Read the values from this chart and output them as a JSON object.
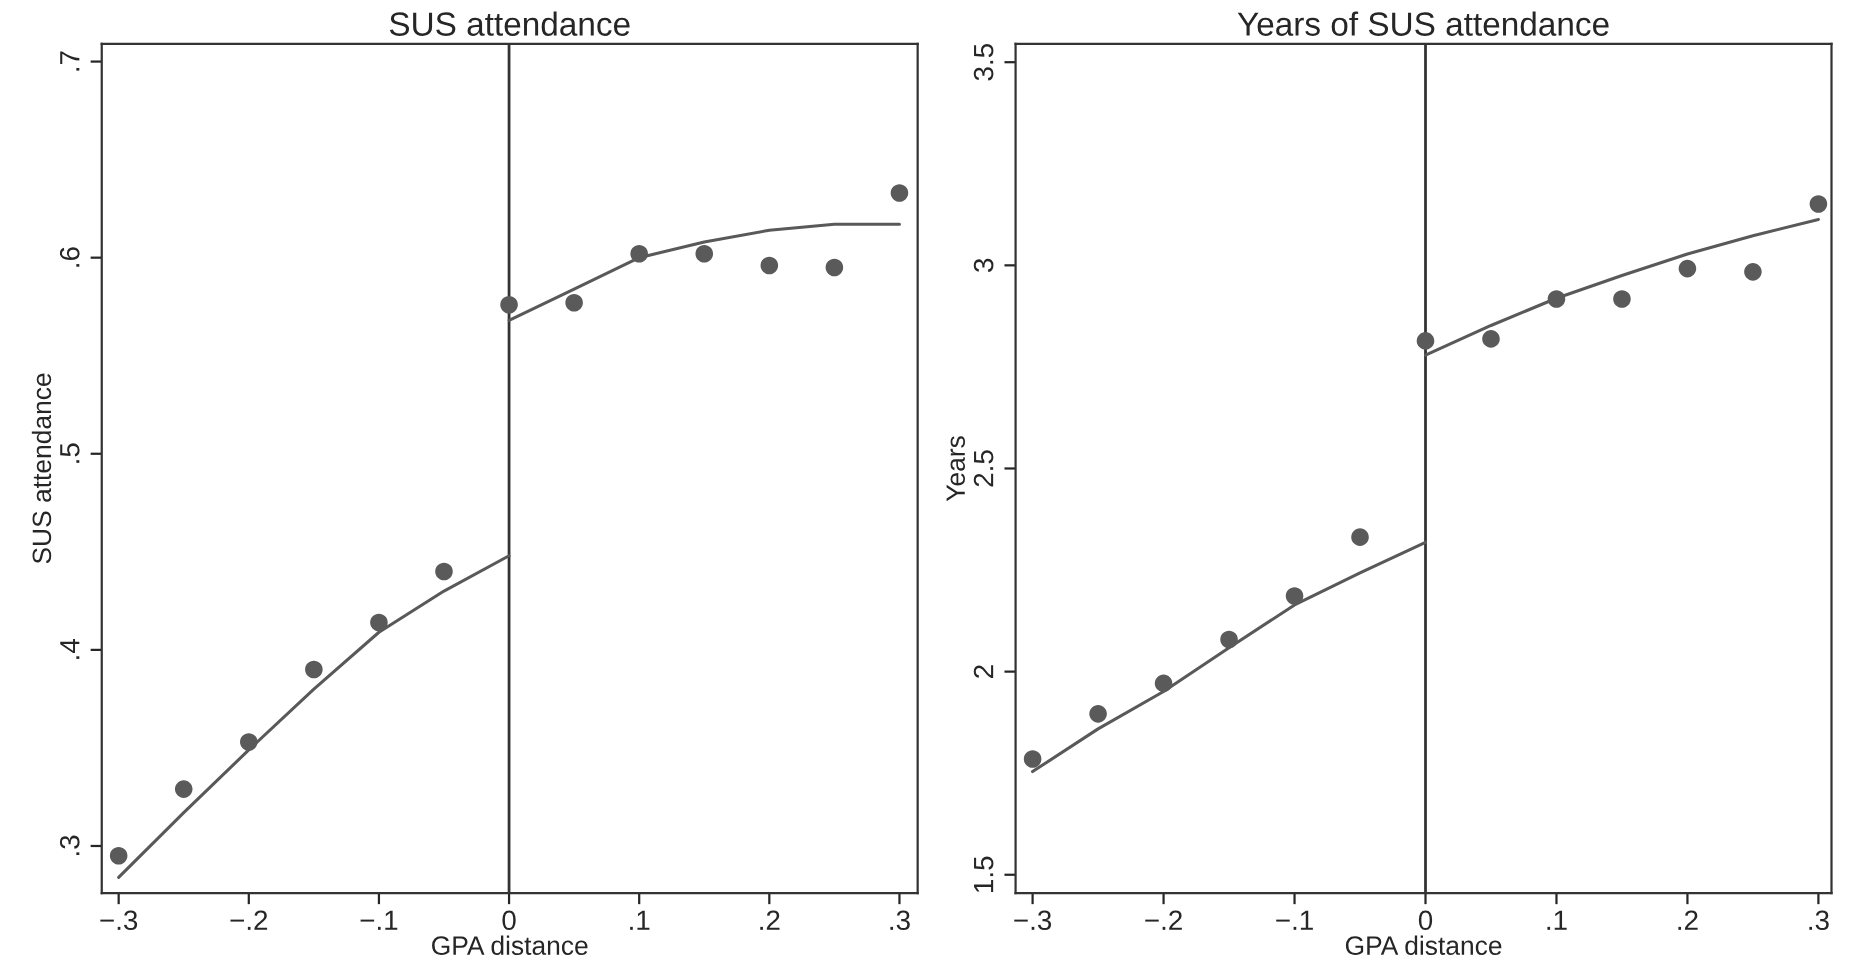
{
  "chart_data": [
    {
      "type": "line",
      "title": "SUS attendance",
      "xlabel": "GPA distance",
      "ylabel": "SUS attendance",
      "xlim": [
        -0.313,
        0.314
      ],
      "ylim": [
        0.276,
        0.709
      ],
      "xticks": [
        {
          "value": -0.3,
          "label": "−.3"
        },
        {
          "value": -0.2,
          "label": "−.2"
        },
        {
          "value": -0.1,
          "label": "−.1"
        },
        0,
        {
          "value": 0.1,
          "label": ".1"
        },
        {
          "value": 0.2,
          "label": ".2"
        },
        {
          "value": 0.3,
          "label": ".3"
        }
      ],
      "yticks": [
        {
          "value": 0.3,
          "label": ".3"
        },
        {
          "value": 0.4,
          "label": ".4"
        },
        {
          "value": 0.5,
          "label": ".5"
        },
        {
          "value": 0.6,
          "label": ".6"
        },
        {
          "value": 0.7,
          "label": ".7"
        }
      ],
      "grid": false,
      "legend": false,
      "ref_lines": [
        {
          "axis": "x",
          "value": 0,
          "color": "#333333"
        }
      ],
      "series": [
        {
          "type": "scatter",
          "marker": "circle",
          "color": "#5a5a5a",
          "x": [
            -0.3,
            -0.25,
            -0.2,
            -0.15,
            -0.1,
            -0.05,
            0,
            0.05,
            0.1,
            0.15,
            0.2,
            0.25,
            0.3
          ],
          "values": [
            0.295,
            0.329,
            0.353,
            0.39,
            0.414,
            0.44,
            0.576,
            0.577,
            0.602,
            0.602,
            0.596,
            0.595,
            0.633
          ]
        },
        {
          "marker": "none",
          "color": "#595959",
          "line_style": "solid",
          "x": [
            -0.3,
            -0.25,
            -0.2,
            -0.15,
            -0.1,
            -0.05,
            0
          ],
          "values": [
            0.284,
            0.317,
            0.349,
            0.38,
            0.409,
            0.43,
            0.448
          ]
        },
        {
          "marker": "none",
          "color": "#595959",
          "line_style": "solid",
          "x": [
            0,
            0.05,
            0.1,
            0.15,
            0.2,
            0.25,
            0.3
          ],
          "values": [
            0.568,
            0.584,
            0.6,
            0.608,
            0.614,
            0.617,
            0.617
          ]
        }
      ]
    },
    {
      "type": "line",
      "title": "Years of SUS attendance",
      "xlabel": "GPA distance",
      "ylabel": "Years",
      "xlim": [
        -0.313,
        0.31
      ],
      "ylim": [
        1.455,
        3.545
      ],
      "xticks": [
        {
          "value": -0.3,
          "label": "−.3"
        },
        {
          "value": -0.2,
          "label": "−.2"
        },
        {
          "value": -0.1,
          "label": "−.1"
        },
        0,
        {
          "value": 0.1,
          "label": ".1"
        },
        {
          "value": 0.2,
          "label": ".2"
        },
        {
          "value": 0.3,
          "label": ".3"
        }
      ],
      "yticks": [
        1.5,
        2,
        2.5,
        3,
        3.5
      ],
      "grid": false,
      "legend": false,
      "ref_lines": [
        {
          "axis": "x",
          "value": 0,
          "color": "#333333"
        }
      ],
      "series": [
        {
          "type": "scatter",
          "marker": "circle",
          "color": "#5a5a5a",
          "x": [
            -0.3,
            -0.25,
            -0.2,
            -0.15,
            -0.1,
            -0.05,
            0,
            0.05,
            0.1,
            0.15,
            0.2,
            0.25,
            0.3
          ],
          "values": [
            1.785,
            1.896,
            1.971,
            2.079,
            2.186,
            2.331,
            2.814,
            2.819,
            2.917,
            2.917,
            2.992,
            2.984,
            3.151
          ]
        },
        {
          "marker": "none",
          "color": "#595959",
          "line_style": "solid",
          "x": [
            -0.3,
            -0.25,
            -0.2,
            -0.15,
            -0.1,
            -0.05,
            0
          ],
          "values": [
            1.754,
            1.859,
            1.951,
            2.059,
            2.164,
            2.243,
            2.318
          ]
        },
        {
          "marker": "none",
          "color": "#595959",
          "line_style": "solid",
          "x": [
            0,
            0.05,
            0.1,
            0.15,
            0.2,
            0.25,
            0.3
          ],
          "values": [
            2.779,
            2.852,
            2.919,
            2.975,
            3.028,
            3.073,
            3.113
          ]
        }
      ]
    }
  ]
}
